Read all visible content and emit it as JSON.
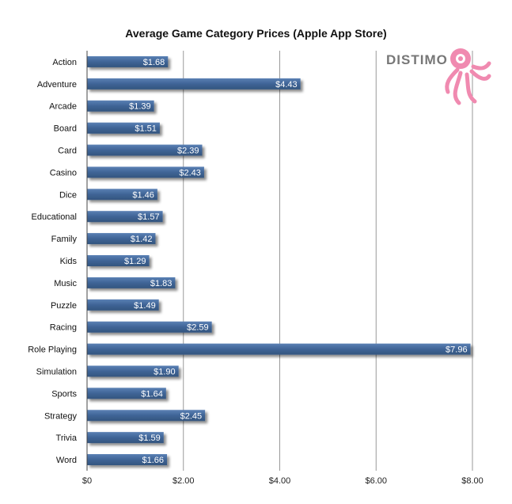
{
  "chart_data": {
    "type": "bar",
    "orientation": "horizontal",
    "title": "Average Game Category Prices (Apple App Store)",
    "xlabel": "",
    "ylabel": "",
    "categories": [
      "Action",
      "Adventure",
      "Arcade",
      "Board",
      "Card",
      "Casino",
      "Dice",
      "Educational",
      "Family",
      "Kids",
      "Music",
      "Puzzle",
      "Racing",
      "Role Playing",
      "Simulation",
      "Sports",
      "Strategy",
      "Trivia",
      "Word"
    ],
    "values": [
      1.68,
      4.43,
      1.39,
      1.51,
      2.39,
      2.43,
      1.46,
      1.57,
      1.42,
      1.29,
      1.83,
      1.49,
      2.59,
      7.96,
      1.9,
      1.64,
      2.45,
      1.59,
      1.66
    ],
    "value_labels": [
      "$1.68",
      "$4.43",
      "$1.39",
      "$1.51",
      "$2.39",
      "$2.43",
      "$1.46",
      "$1.57",
      "$1.42",
      "$1.29",
      "$1.83",
      "$1.49",
      "$2.59",
      "$7.96",
      "$1.90",
      "$1.64",
      "$2.45",
      "$1.59",
      "$1.66"
    ],
    "xlim": [
      0,
      8
    ],
    "xticks": [
      0,
      2,
      4,
      6,
      8
    ],
    "xtick_labels": [
      "$0",
      "$2.00",
      "$4.00",
      "$6.00",
      "$8.00"
    ],
    "grid": true,
    "bar_color": "#3f6496",
    "grid_color": "#999999",
    "legend": "none"
  },
  "logo": {
    "text": "DISTIMO",
    "color": "#f08ab0",
    "text_color": "#777777",
    "icon": "octopus-icon"
  }
}
